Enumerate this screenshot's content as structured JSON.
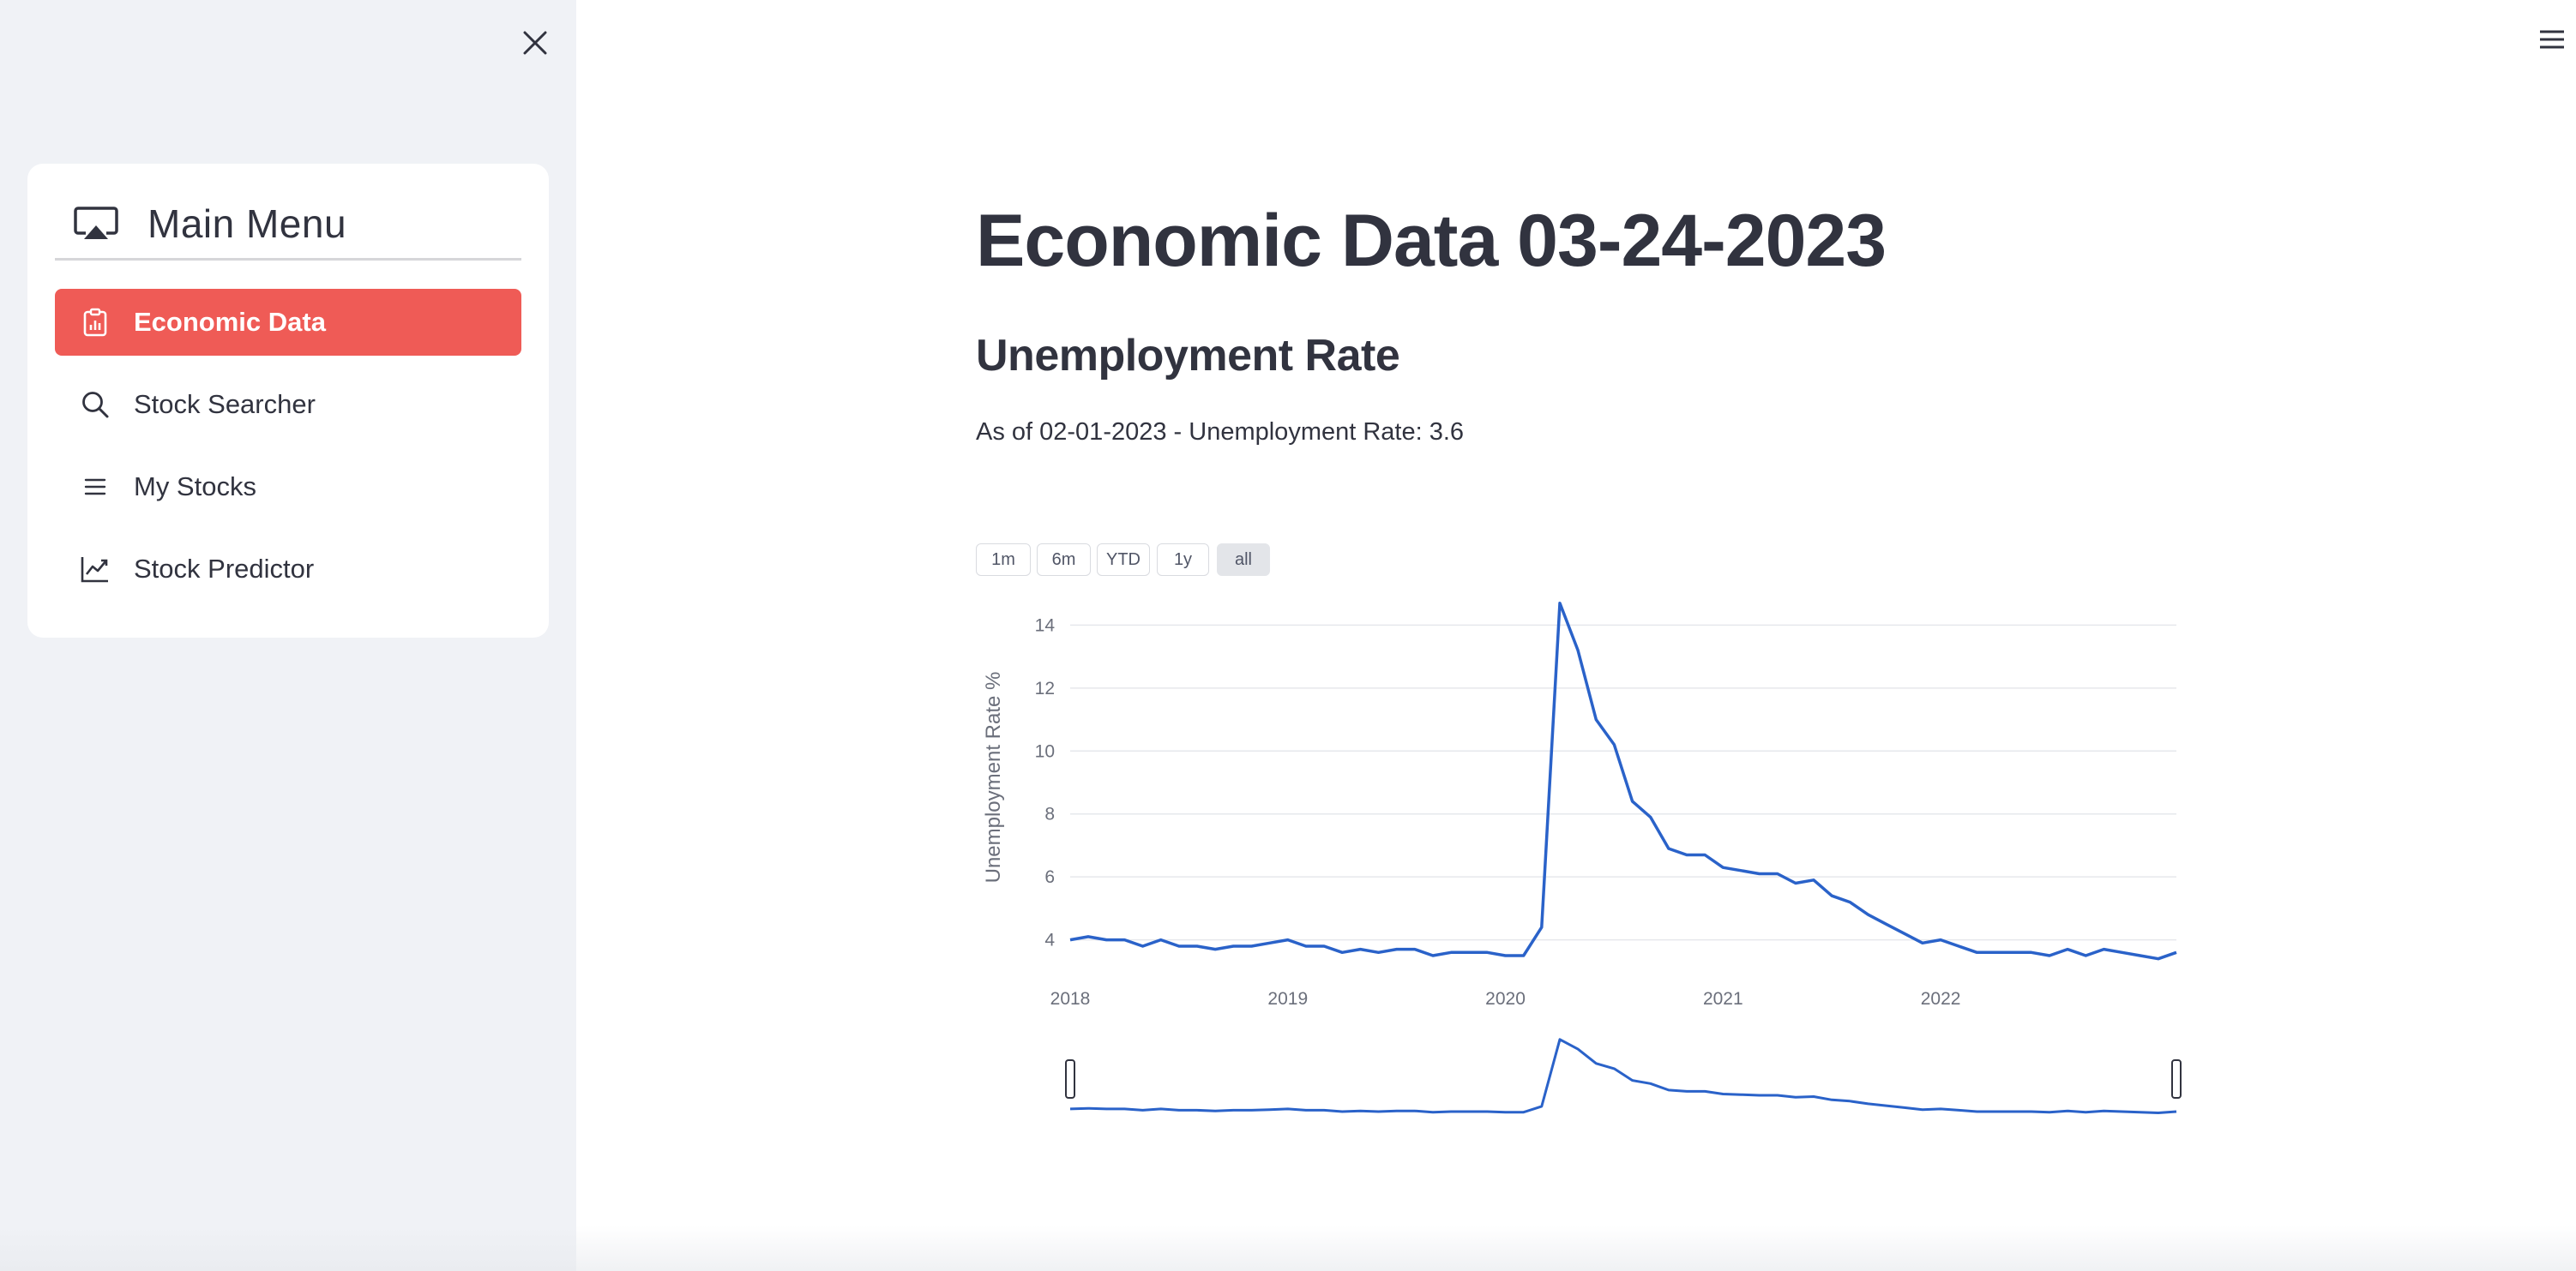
{
  "sidebar": {
    "close_icon": "close-icon",
    "menu_title": "Main Menu",
    "menu_icon": "airplay-icon",
    "items": [
      {
        "label": "Economic Data",
        "icon": "clipboard-data-icon",
        "active": true
      },
      {
        "label": "Stock Searcher",
        "icon": "search-icon",
        "active": false
      },
      {
        "label": "My Stocks",
        "icon": "list-icon",
        "active": false
      },
      {
        "label": "Stock Predictor",
        "icon": "graph-up-icon",
        "active": false
      }
    ],
    "accent_color": "#ef5b56"
  },
  "main": {
    "title": "Economic Data 03-24-2023",
    "section_title": "Unemployment Rate",
    "info": "As of 02-01-2023 - Unemployment Rate: 3.6",
    "range_buttons": [
      {
        "label": "1m"
      },
      {
        "label": "6m"
      },
      {
        "label": "YTD"
      },
      {
        "label": "1y"
      },
      {
        "label": "all",
        "selected": true
      }
    ]
  },
  "chart_data": {
    "type": "line",
    "title": "",
    "xlabel": "",
    "ylabel": "Unemployment Rate %",
    "ylim": [
      3.2,
      14.8
    ],
    "yticks": [
      4,
      6,
      8,
      10,
      12,
      14
    ],
    "xticks": [
      "2018",
      "2019",
      "2020",
      "2021",
      "2022"
    ],
    "grid": true,
    "line_color": "#2a62c9",
    "has_range_slider": true,
    "x": [
      "2018-01",
      "2018-02",
      "2018-03",
      "2018-04",
      "2018-05",
      "2018-06",
      "2018-07",
      "2018-08",
      "2018-09",
      "2018-10",
      "2018-11",
      "2018-12",
      "2019-01",
      "2019-02",
      "2019-03",
      "2019-04",
      "2019-05",
      "2019-06",
      "2019-07",
      "2019-08",
      "2019-09",
      "2019-10",
      "2019-11",
      "2019-12",
      "2020-01",
      "2020-02",
      "2020-03",
      "2020-04",
      "2020-05",
      "2020-06",
      "2020-07",
      "2020-08",
      "2020-09",
      "2020-10",
      "2020-11",
      "2020-12",
      "2021-01",
      "2021-02",
      "2021-03",
      "2021-04",
      "2021-05",
      "2021-06",
      "2021-07",
      "2021-08",
      "2021-09",
      "2021-10",
      "2021-11",
      "2021-12",
      "2022-01",
      "2022-02",
      "2022-03",
      "2022-04",
      "2022-05",
      "2022-06",
      "2022-07",
      "2022-08",
      "2022-09",
      "2022-10",
      "2022-11",
      "2022-12",
      "2023-01",
      "2023-02"
    ],
    "y": [
      4.0,
      4.1,
      4.0,
      4.0,
      3.8,
      4.0,
      3.8,
      3.8,
      3.7,
      3.8,
      3.8,
      3.9,
      4.0,
      3.8,
      3.8,
      3.6,
      3.7,
      3.6,
      3.7,
      3.7,
      3.5,
      3.6,
      3.6,
      3.6,
      3.5,
      3.5,
      4.4,
      14.7,
      13.2,
      11.0,
      10.2,
      8.4,
      7.9,
      6.9,
      6.7,
      6.7,
      6.3,
      6.2,
      6.1,
      6.1,
      5.8,
      5.9,
      5.4,
      5.2,
      4.8,
      4.5,
      4.2,
      3.9,
      4.0,
      3.8,
      3.6,
      3.6,
      3.6,
      3.6,
      3.5,
      3.7,
      3.5,
      3.7,
      3.6,
      3.5,
      3.4,
      3.6
    ]
  }
}
